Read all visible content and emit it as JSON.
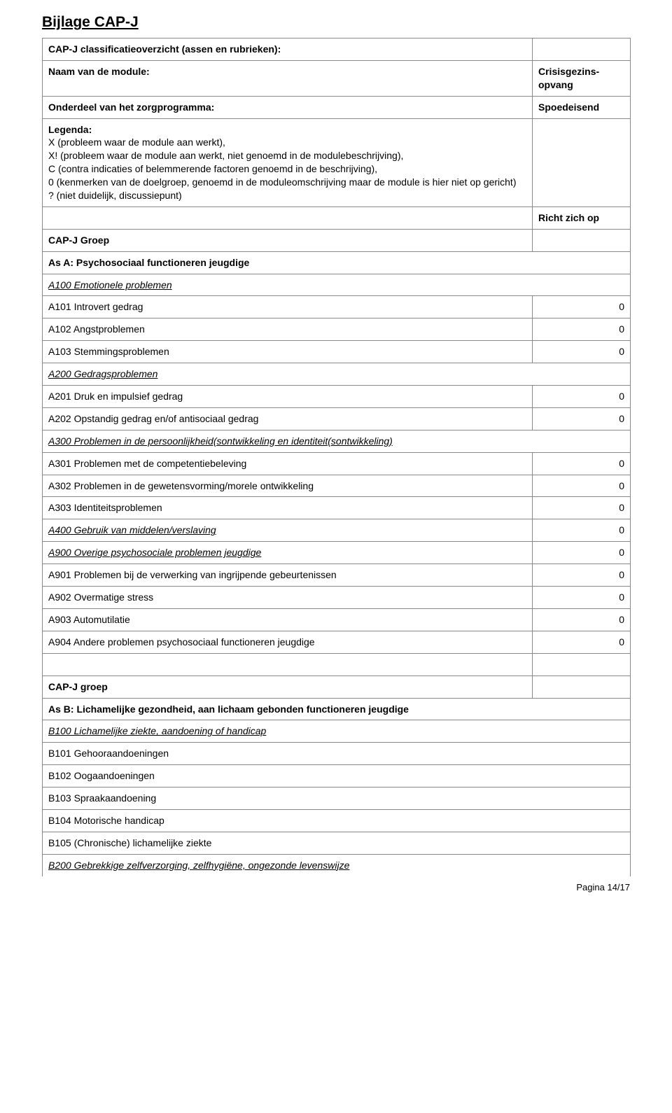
{
  "title": "Bijlage CAP-J",
  "overview": "CAP-J classificatieoverzicht (assen en rubrieken):",
  "module_name_label": "Naam van de module:",
  "module_name_value": "Crisisgezins-opvang",
  "zorg_label": "Onderdeel van het zorgprogramma:",
  "zorg_value": "Spoedeisend",
  "legenda_label": "Legenda:",
  "legenda_body": "X (probleem waar de module aan werkt),\nX! (probleem waar de module aan werkt, niet genoemd in de modulebeschrijving),\nC (contra indicaties of belemmerende factoren genoemd in de beschrijving),\n0 (kenmerken van de doelgroep, genoemd in de moduleomschrijving maar de module is hier niet op gericht)\n? (niet duidelijk, discussiepunt)",
  "richt": "Richt zich op",
  "capj_groep": "CAP-J Groep",
  "capj_groep_lc": "CAP-J groep",
  "asA": "As A: Psychosociaal functioneren jeugdige",
  "A100": "A100 Emotionele problemen",
  "A101": "A101 Introvert gedrag",
  "A101v": "0",
  "A102": "A102 Angstproblemen",
  "A102v": "0",
  "A103": "A103 Stemmingsproblemen",
  "A103v": "0",
  "A200": "A200 Gedragsproblemen",
  "A201": "A201 Druk en impulsief gedrag",
  "A201v": "0",
  "A202": "A202 Opstandig gedrag en/of antisociaal gedrag",
  "A202v": "0",
  "A300": "A300 Problemen in de persoonlijkheid(sontwikkeling en identiteit(sontwikkeling)",
  "A301": "A301 Problemen met de competentiebeleving",
  "A301v": "0",
  "A302": "A302 Problemen in de gewetensvorming/morele ontwikkeling",
  "A302v": "0",
  "A303": "A303 Identiteitsproblemen",
  "A303v": "0",
  "A400": "A400 Gebruik van middelen/verslaving",
  "A400v": "0",
  "A900": "A900 Overige psychosociale problemen jeugdige",
  "A900v": "0",
  "A901": "A901 Problemen bij de verwerking van ingrijpende gebeurtenissen",
  "A901v": "0",
  "A902": "A902 Overmatige stress",
  "A902v": "0",
  "A903": "A903 Automutilatie",
  "A903v": "0",
  "A904": "A904 Andere problemen psychosociaal functioneren jeugdige",
  "A904v": "0",
  "asB": "As B: Lichamelijke gezondheid, aan lichaam gebonden functioneren jeugdige",
  "B100": "B100 Lichamelijke ziekte, aandoening of handicap",
  "B101": "B101 Gehooraandoeningen",
  "B102": "B102 Oogaandoeningen",
  "B103": "B103 Spraakaandoening",
  "B104": "B104 Motorische handicap",
  "B105": "B105 (Chronische) lichamelijke ziekte",
  "B200": "B200 Gebrekkige zelfverzorging, zelfhygiëne, ongezonde levenswijze",
  "page_label": "Pagina 14/17"
}
